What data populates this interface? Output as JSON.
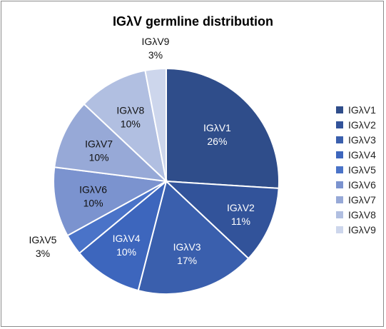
{
  "chart_data": {
    "type": "pie",
    "title": "IGλV germline distribution",
    "categories": [
      "IGλV1",
      "IGλV2",
      "IGλV3",
      "IGλV4",
      "IGλV5",
      "IGλV6",
      "IGλV7",
      "IGλV8",
      "IGλV9"
    ],
    "values": [
      26,
      11,
      17,
      10,
      3,
      10,
      10,
      10,
      3
    ],
    "data_labels": [
      "26%",
      "11%",
      "17%",
      "10%",
      "3%",
      "10%",
      "10%",
      "10%",
      "3%"
    ],
    "colors": [
      "#2f4d8a",
      "#32539a",
      "#3a5fad",
      "#3d66bd",
      "#4a73c8",
      "#7b93cf",
      "#97a9d7",
      "#b1bfe1",
      "#cdd6ec"
    ],
    "start_angle_deg": 0,
    "direction": "clockwise",
    "legend_position": "right"
  }
}
